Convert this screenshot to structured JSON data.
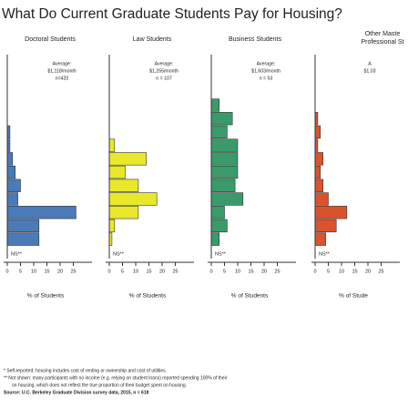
{
  "title": "What Do Current Graduate Students Pay for Housing?",
  "chart_data": [
    {
      "type": "bar",
      "panel_title": [
        "Doctoral Students"
      ],
      "annotation": [
        "Average:",
        "$1,118/month",
        "n=420"
      ],
      "categories": [
        null,
        null,
        null,
        null,
        null,
        null,
        null,
        null,
        null,
        null,
        null,
        null,
        null,
        null
      ],
      "values": [
        0,
        0,
        0,
        0,
        0,
        1,
        1,
        2,
        3,
        5,
        4,
        26,
        12,
        12
      ],
      "color": "#4a7ab8",
      "xlim": [
        0,
        30
      ],
      "xticks": [
        0,
        5,
        10,
        15,
        20,
        25
      ],
      "xlabel": "% of Students",
      "note": "NS**"
    },
    {
      "type": "bar",
      "panel_title": [
        "Law Students"
      ],
      "annotation": [
        "Average:",
        "$1,255/month",
        "n = 107"
      ],
      "categories": [
        null,
        null,
        null,
        null,
        null,
        null,
        null,
        null,
        null,
        null,
        null,
        null,
        null,
        null
      ],
      "values": [
        0,
        0,
        0,
        0,
        0,
        0,
        2,
        14,
        6,
        11,
        18,
        11,
        2,
        1
      ],
      "color": "#e9e82a",
      "xlim": [
        0,
        30
      ],
      "xticks": [
        0,
        5,
        10,
        15,
        20,
        25
      ],
      "xlabel": "% of Students",
      "note": "NS**"
    },
    {
      "type": "bar",
      "panel_title": [
        "Business Students"
      ],
      "annotation": [
        "Average:",
        "$1,603/month",
        "n = 53"
      ],
      "categories": [
        null,
        null,
        null,
        null,
        null,
        null,
        null,
        null,
        null,
        null,
        null,
        null,
        null,
        null
      ],
      "values": [
        0,
        0,
        0,
        3,
        8,
        6,
        10,
        10,
        10,
        9,
        12,
        5,
        6,
        3
      ],
      "color": "#3a9a6a",
      "xlim": [
        0,
        30
      ],
      "xticks": [
        0,
        5,
        10,
        15,
        20,
        25
      ],
      "xlabel": "% of Students",
      "note": "NS**"
    },
    {
      "type": "bar",
      "panel_title": [
        "Other Maste",
        "Professional St"
      ],
      "annotation": [
        "A",
        "$1,03"
      ],
      "categories": [
        null,
        null,
        null,
        null,
        null,
        null,
        null,
        null,
        null,
        null,
        null,
        null,
        null,
        null
      ],
      "values": [
        0,
        0,
        0,
        0,
        1,
        2,
        1,
        3,
        2,
        3,
        5,
        12,
        8,
        4
      ],
      "color": "#d9532c",
      "xlim": [
        0,
        30
      ],
      "xticks": [
        0,
        5,
        10,
        15,
        20,
        25
      ],
      "xlabel": "% of Stude",
      "note": "NS**"
    }
  ],
  "footnotes": [
    "* Self-reported; housing includes cost of renting or ownership and cost of utilities.",
    "** Not shown: many participants with no income (e.g. relying on student loans) reported spending 100% of their",
    "on housing, which does not reflect the true proportion of their budget spent on housing.",
    "Source: U.C. Berkeley Graduate Division survey data, 2015, n = 618"
  ]
}
